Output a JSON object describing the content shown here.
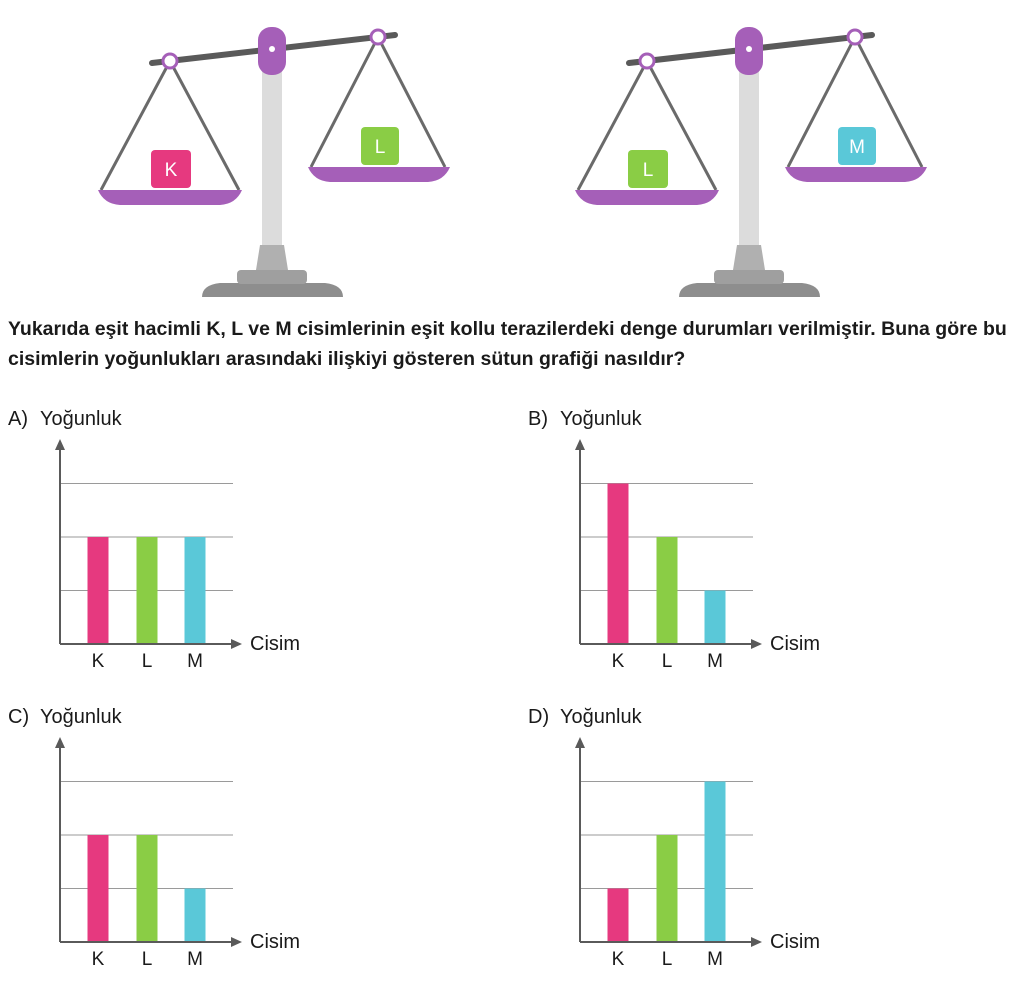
{
  "scales": [
    {
      "left_label": "K",
      "right_label": "L",
      "left_color": "#e6397f",
      "right_color": "#8acd45"
    },
    {
      "left_label": "L",
      "right_label": "M",
      "left_color": "#8acd45",
      "right_color": "#5ac8d8"
    }
  ],
  "question": "Yukarıda eşit hacimli K, L ve M cisimlerinin eşit kollu terazilerdeki denge durumları verilmiştir. Buna göre bu cisimlerin yoğunlukları arasındaki ilişkiyi gösteren sütun grafiği nasıldır?",
  "colors": {
    "K": "#e6397f",
    "L": "#8acd45",
    "M": "#5ac8d8",
    "scale_arm": "#a55fb8",
    "axis": "#5a5a5a",
    "grid": "#9a9a9a"
  },
  "chart_data": [
    {
      "option": "A)",
      "type": "bar",
      "ylabel": "Yoğunluk",
      "xlabel": "Cisim",
      "categories": [
        "K",
        "L",
        "M"
      ],
      "values": [
        2,
        2,
        2
      ],
      "ylim": [
        0,
        3
      ],
      "grid": true
    },
    {
      "option": "B)",
      "type": "bar",
      "ylabel": "Yoğunluk",
      "xlabel": "Cisim",
      "categories": [
        "K",
        "L",
        "M"
      ],
      "values": [
        3,
        2,
        1
      ],
      "ylim": [
        0,
        3
      ],
      "grid": true
    },
    {
      "option": "C)",
      "type": "bar",
      "ylabel": "Yoğunluk",
      "xlabel": "Cisim",
      "categories": [
        "K",
        "L",
        "M"
      ],
      "values": [
        2,
        2,
        1
      ],
      "ylim": [
        0,
        3
      ],
      "grid": true
    },
    {
      "option": "D)",
      "type": "bar",
      "ylabel": "Yoğunluk",
      "xlabel": "Cisim",
      "categories": [
        "K",
        "L",
        "M"
      ],
      "values": [
        1,
        2,
        3
      ],
      "ylim": [
        0,
        3
      ],
      "grid": true
    }
  ]
}
